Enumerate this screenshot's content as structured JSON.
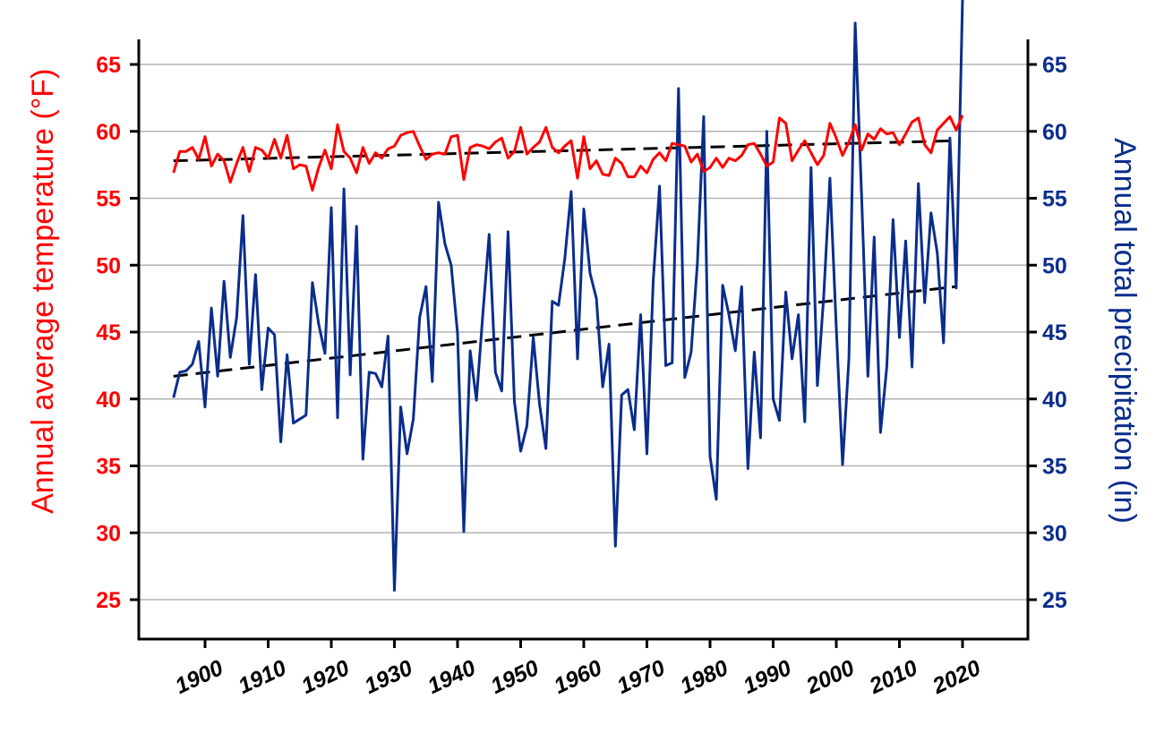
{
  "chart_data": {
    "type": "line",
    "title": "",
    "xlabel": "",
    "ylabel_left": "Annual average temperature (°F)",
    "ylabel_right": "Annual total precipitation (in)",
    "xlim": [
      1890,
      2030
    ],
    "x_ticks": [
      1900,
      1910,
      1920,
      1930,
      1940,
      1950,
      1960,
      1970,
      1980,
      1990,
      2000,
      2010,
      2020
    ],
    "ylim_left": [
      22,
      70
    ],
    "ylim_right": [
      22,
      70
    ],
    "y_ticks_left": [
      25,
      30,
      35,
      40,
      45,
      50,
      55,
      60,
      65
    ],
    "y_ticks_right": [
      25,
      30,
      35,
      40,
      45,
      50,
      55,
      60,
      65
    ],
    "grid": "horizontal",
    "x": [
      1895,
      1896,
      1897,
      1898,
      1899,
      1900,
      1901,
      1902,
      1903,
      1904,
      1905,
      1906,
      1907,
      1908,
      1909,
      1910,
      1911,
      1912,
      1913,
      1914,
      1915,
      1916,
      1917,
      1918,
      1919,
      1920,
      1921,
      1922,
      1923,
      1924,
      1925,
      1926,
      1927,
      1928,
      1929,
      1930,
      1931,
      1932,
      1933,
      1934,
      1935,
      1936,
      1937,
      1938,
      1939,
      1940,
      1941,
      1942,
      1943,
      1944,
      1945,
      1946,
      1947,
      1948,
      1949,
      1950,
      1951,
      1952,
      1953,
      1954,
      1955,
      1956,
      1957,
      1958,
      1959,
      1960,
      1961,
      1962,
      1963,
      1964,
      1965,
      1966,
      1967,
      1968,
      1969,
      1970,
      1971,
      1972,
      1973,
      1974,
      1975,
      1976,
      1977,
      1978,
      1979,
      1980,
      1981,
      1982,
      1983,
      1984,
      1985,
      1986,
      1987,
      1988,
      1989,
      1990,
      1991,
      1992,
      1993,
      1994,
      1995,
      1996,
      1997,
      1998,
      1999,
      2000,
      2001,
      2002,
      2003,
      2004,
      2005,
      2006,
      2007,
      2008,
      2009,
      2010,
      2011,
      2012,
      2013,
      2014,
      2015,
      2016,
      2017,
      2018,
      2019,
      2020
    ],
    "series": [
      {
        "name": "Temperature",
        "axis": "left",
        "color": "#ff0000",
        "values": [
          56.9,
          58.5,
          58.5,
          58.8,
          57.9,
          59.6,
          57.4,
          58.3,
          57.8,
          56.2,
          57.6,
          58.8,
          57.0,
          58.8,
          58.6,
          58.0,
          59.4,
          58.0,
          59.7,
          57.2,
          57.5,
          57.4,
          55.6,
          57.3,
          58.6,
          57.2,
          60.5,
          58.5,
          58.0,
          56.9,
          58.8,
          57.6,
          58.4,
          58.0,
          58.7,
          58.9,
          59.7,
          59.9,
          60.0,
          58.9,
          57.9,
          58.3,
          58.4,
          58.3,
          59.6,
          59.7,
          56.4,
          58.8,
          59.0,
          58.9,
          58.7,
          59.2,
          59.5,
          58.0,
          58.5,
          60.3,
          58.3,
          58.8,
          59.2,
          60.3,
          58.8,
          58.4,
          58.9,
          59.3,
          56.5,
          59.6,
          57.2,
          57.8,
          56.8,
          56.7,
          58.0,
          57.6,
          56.6,
          56.6,
          57.4,
          56.9,
          57.9,
          58.4,
          57.8,
          59.1,
          59.0,
          58.9,
          57.7,
          58.3,
          57.0,
          57.3,
          58.0,
          57.3,
          58.0,
          57.8,
          58.2,
          59.0,
          59.1,
          58.3,
          57.4,
          57.7,
          61.0,
          60.6,
          57.8,
          58.6,
          59.3,
          58.4,
          57.5,
          58.2,
          60.6,
          59.5,
          58.2,
          59.2,
          60.5,
          58.6,
          59.8,
          59.4,
          60.2,
          59.8,
          59.9,
          59.0,
          59.8,
          60.7,
          61.0,
          59.0,
          58.4,
          60.1,
          60.6,
          61.1,
          60.1,
          61.2
        ]
      },
      {
        "name": "Precipitation",
        "axis": "right",
        "color": "#0a2d8c",
        "values": [
          40.1,
          42.0,
          42.1,
          42.6,
          44.3,
          39.4,
          46.8,
          41.7,
          48.8,
          43.1,
          46.1,
          53.7,
          42.6,
          49.3,
          40.7,
          45.3,
          44.8,
          36.8,
          43.3,
          38.2,
          38.5,
          38.8,
          48.7,
          45.6,
          43.4,
          54.3,
          38.6,
          55.7,
          41.8,
          52.9,
          35.5,
          42.0,
          41.9,
          40.9,
          44.7,
          25.7,
          39.4,
          35.9,
          38.5,
          46.1,
          48.4,
          41.3,
          54.7,
          51.6,
          50.0,
          44.9,
          30.1,
          43.6,
          39.9,
          46.3,
          52.3,
          42.0,
          40.6,
          52.5,
          39.8,
          36.1,
          38.0,
          44.6,
          39.6,
          36.3,
          47.3,
          47.0,
          50.5,
          55.5,
          43.0,
          54.2,
          49.4,
          47.5,
          40.9,
          44.1,
          29.0,
          40.3,
          40.7,
          37.7,
          46.3,
          35.9,
          48.8,
          55.9,
          42.5,
          42.7,
          63.2,
          41.6,
          43.5,
          50.2,
          61.1,
          35.7,
          32.5,
          48.5,
          46.3,
          43.6,
          48.4,
          34.8,
          43.5,
          37.1,
          60.0,
          40.0,
          38.4,
          48.0,
          43.0,
          46.3,
          38.3,
          57.3,
          41.0,
          47.6,
          56.5,
          45.3,
          35.1,
          43.0,
          68.1,
          55.3,
          41.7,
          52.1,
          37.5,
          42.4,
          53.4,
          44.6,
          51.8,
          42.4,
          56.1,
          47.2,
          53.9,
          50.9,
          44.2,
          59.5,
          48.3,
          69.9
        ]
      }
    ],
    "trendlines": [
      {
        "name": "Temperature trend",
        "axis": "left",
        "color": "#000000",
        "style": "dashed",
        "x": [
          1895,
          2019
        ],
        "y": [
          57.8,
          59.3
        ]
      },
      {
        "name": "Precipitation trend",
        "axis": "right",
        "color": "#000000",
        "style": "dashed",
        "x": [
          1895,
          2019
        ],
        "y": [
          41.7,
          48.4
        ]
      }
    ],
    "colors": {
      "left_axis": "#ff0000",
      "right_axis": "#0a2d8c",
      "grid": "#b3b3b3",
      "axis": "#000000"
    }
  }
}
